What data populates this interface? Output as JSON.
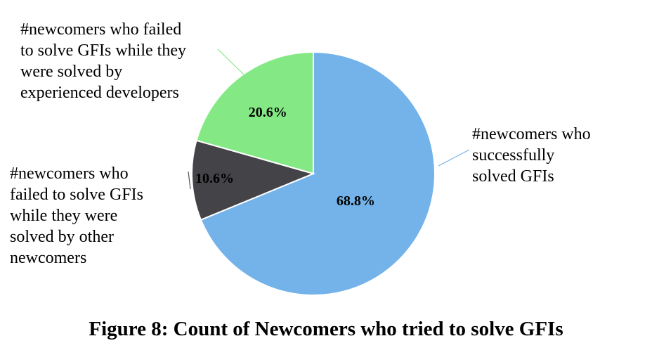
{
  "chart_data": {
    "type": "pie",
    "slices": [
      {
        "label": "#newcomers who successfully solved GFIs",
        "label_lines": [
          "#newcomers who",
          "successfully",
          "solved GFIs"
        ],
        "value": 68.8,
        "value_label": "68.8%",
        "color": "#73b3ea"
      },
      {
        "label": "#newcomers who failed to solve GFIs while they were solved by other newcomers",
        "label_lines": [
          "#newcomers who",
          "failed to solve GFIs",
          "while they were",
          "solved by other",
          "newcomers"
        ],
        "value": 10.6,
        "value_label": "10.6%",
        "color": "#434348"
      },
      {
        "label": "#newcomers who failed to solve GFIs while they were solved by experienced developers",
        "label_lines": [
          "#newcomers who failed",
          "to solve GFIs while they",
          "were solved by",
          "experienced developers"
        ],
        "value": 20.6,
        "value_label": "20.6%",
        "color": "#84e984"
      }
    ],
    "start": "12 o'clock",
    "direction": "clockwise",
    "slice_border_color": "#ffffff"
  },
  "caption": "Figure 8: Count of Newcomers who tried to solve GFIs"
}
